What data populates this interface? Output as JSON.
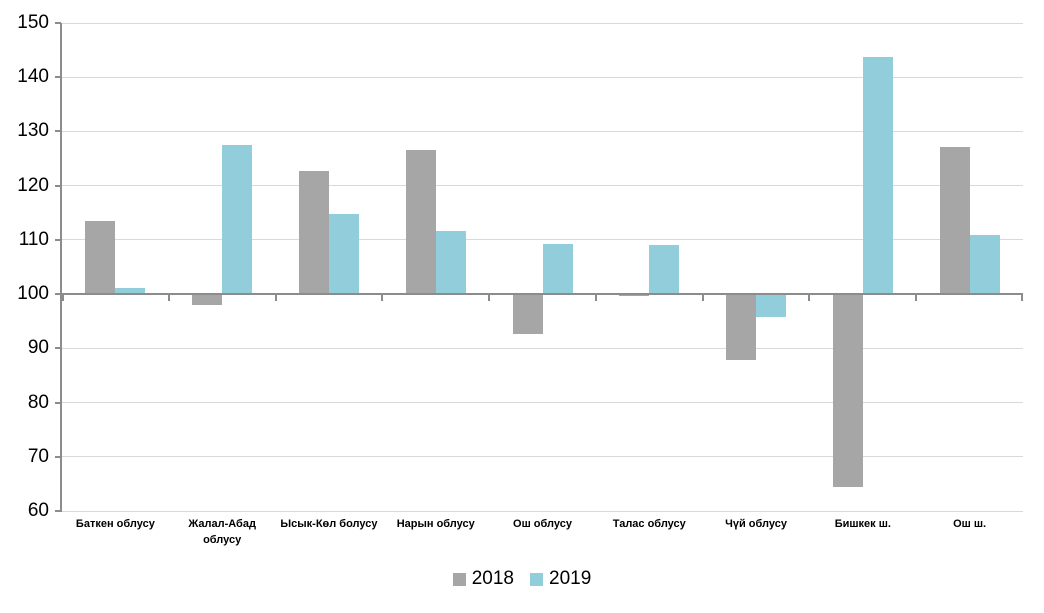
{
  "chart_data": {
    "type": "bar",
    "title": "",
    "categories": [
      "Баткен облусу",
      "Жалал-Абад облусу",
      "Ысык-Көл болусу",
      "Нарын облусу",
      "Ош облусу",
      "Талас облусу",
      "Чүй облусу",
      "Бишкек ш.",
      "Ош ш."
    ],
    "series": [
      {
        "name": "2018",
        "color": "#a6a6a6",
        "values": [
          113.5,
          98.0,
          122.7,
          126.5,
          92.7,
          99.7,
          87.9,
          64.4,
          127.1
        ]
      },
      {
        "name": "2019",
        "color": "#92cddc",
        "values": [
          101.1,
          127.5,
          114.7,
          111.6,
          109.3,
          109.0,
          95.8,
          143.8,
          110.9
        ]
      }
    ],
    "ylim": [
      60,
      150
    ],
    "ytick_step": 10,
    "ytick_labels": [
      "60",
      "70",
      "80",
      "90",
      "100",
      "110",
      "120",
      "130",
      "140",
      "150"
    ],
    "baseline": 100,
    "grid": true,
    "legend_position": "bottom"
  },
  "colors": {
    "background": "#ffffff",
    "gridline": "#d9d9d9",
    "axis": "#8c8c8c",
    "text": "#000000"
  }
}
